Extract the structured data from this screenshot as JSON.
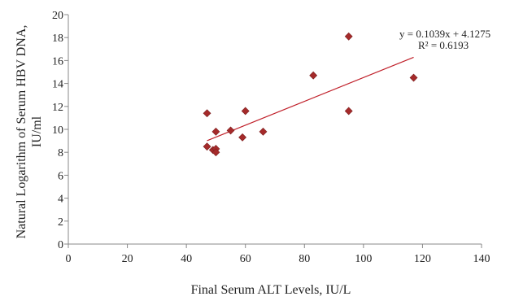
{
  "chart_data": {
    "type": "scatter",
    "title": "",
    "xlabel": "Final Serum ALT Levels, IU/L",
    "ylabel_lines": [
      "Natural Logarithm of Serum HBV DNA,",
      "IU/ml"
    ],
    "xlim": [
      0,
      140
    ],
    "ylim": [
      0,
      20
    ],
    "xticks": [
      "0",
      "20",
      "40",
      "60",
      "80",
      "100",
      "120",
      "140"
    ],
    "yticks": [
      "0",
      "2",
      "4",
      "6",
      "8",
      "10",
      "12",
      "14",
      "16",
      "18",
      "20"
    ],
    "grid": false,
    "legend": "none",
    "marker": "diamond",
    "marker_color": "#a52a2a",
    "trendline_color": "#c0202a",
    "points": [
      {
        "x": 47,
        "y": 11.4
      },
      {
        "x": 47,
        "y": 8.5
      },
      {
        "x": 49,
        "y": 8.2
      },
      {
        "x": 50,
        "y": 8.3
      },
      {
        "x": 50,
        "y": 8.0
      },
      {
        "x": 50,
        "y": 9.8
      },
      {
        "x": 55,
        "y": 9.9
      },
      {
        "x": 59,
        "y": 9.3
      },
      {
        "x": 60,
        "y": 11.6
      },
      {
        "x": 66,
        "y": 9.8
      },
      {
        "x": 83,
        "y": 14.7
      },
      {
        "x": 95,
        "y": 18.1
      },
      {
        "x": 95,
        "y": 11.6
      },
      {
        "x": 117,
        "y": 14.5
      }
    ],
    "trendline": {
      "slope": 0.1039,
      "intercept": 4.1275,
      "x_range": [
        47,
        117
      ],
      "equation_label": "y = 0.1039x + 4.1275",
      "r2_label": "R² = 0.6193"
    }
  }
}
